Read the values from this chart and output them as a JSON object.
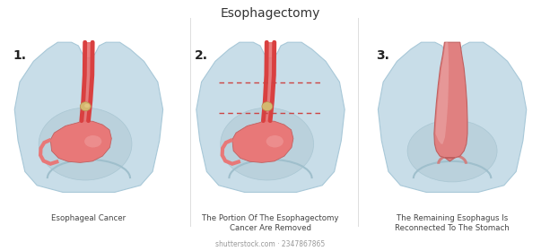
{
  "title": "Esophagectomy",
  "title_fontsize": 10,
  "bg_color": "#ffffff",
  "body_color": "#c8dde8",
  "body_edge_color": "#a8c8d8",
  "esophagus_color": "#d94040",
  "esophagus_light": "#e87070",
  "stomach_color": "#e87878",
  "stomach_light": "#f0a0a0",
  "organ_color": "#b8d0dc",
  "cancer_color": "#d4b870",
  "dashed_color": "#cc4444",
  "step_labels": [
    "1.",
    "2.",
    "3."
  ],
  "captions": [
    "Esophageal Cancer",
    "The Portion Of The Esophagectomy\nCancer Are Removed",
    "The Remaining Esophagus Is\nReconnected To The Stomach"
  ],
  "caption_fontsize": 6.2,
  "watermark": "shutterstock.com · 2347867865",
  "watermark_fontsize": 5.5
}
